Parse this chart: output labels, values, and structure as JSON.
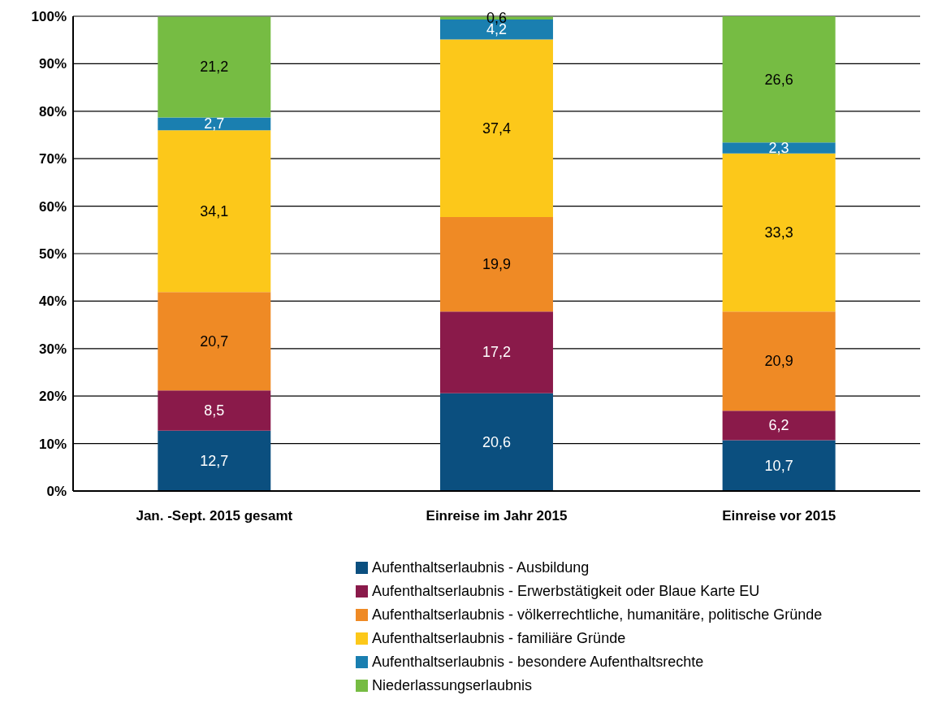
{
  "chart_data": {
    "type": "bar",
    "stacked": true,
    "categories": [
      "Jan. -Sept. 2015 gesamt",
      "Einreise im Jahr 2015",
      "Einreise vor 2015"
    ],
    "series": [
      {
        "name": "Aufenthaltserlaubnis - Ausbildung",
        "color": "#0b4f7f",
        "values": [
          12.7,
          20.6,
          10.7
        ],
        "value_labels": [
          "12,7",
          "20,6",
          "10,7"
        ]
      },
      {
        "name": "Aufenthaltserlaubnis - Erwerbstätigkeit oder Blaue Karte EU",
        "color": "#8a1a4a",
        "values": [
          8.5,
          17.2,
          6.2
        ],
        "value_labels": [
          "8,5",
          "17,2",
          "6,2"
        ]
      },
      {
        "name": "Aufenthaltserlaubnis - völkerrechtliche, humanitäre, politische Gründe",
        "color": "#ef8a25",
        "values": [
          20.7,
          19.9,
          20.9
        ],
        "value_labels": [
          "20,7",
          "19,9",
          "20,9"
        ]
      },
      {
        "name": "Aufenthaltserlaubnis - familiäre Gründe",
        "color": "#fcc81a",
        "values": [
          34.1,
          37.4,
          33.3
        ],
        "value_labels": [
          "34,1",
          "37,4",
          "33,3"
        ]
      },
      {
        "name": "Aufenthaltserlaubnis - besondere Aufenthaltsrechte",
        "color": "#1a7fb0",
        "values": [
          2.7,
          4.2,
          2.3
        ],
        "value_labels": [
          "2,7",
          "4,2",
          "2,3"
        ]
      },
      {
        "name": "Niederlassungserlaubnis",
        "color": "#76bc43",
        "values": [
          21.2,
          0.6,
          26.6
        ],
        "value_labels": [
          "21,2",
          "0,6",
          "26,6"
        ]
      }
    ],
    "ylim": [
      0,
      100
    ],
    "yticks": [
      {
        "value": 0,
        "label": "0%"
      },
      {
        "value": 10,
        "label": "10%"
      },
      {
        "value": 20,
        "label": "20%"
      },
      {
        "value": 30,
        "label": "30%"
      },
      {
        "value": 40,
        "label": "40%"
      },
      {
        "value": 50,
        "label": "50%"
      },
      {
        "value": 60,
        "label": "60%"
      },
      {
        "value": 70,
        "label": "70%"
      },
      {
        "value": 80,
        "label": "80%"
      },
      {
        "value": 90,
        "label": "90%"
      },
      {
        "value": 100,
        "label": "100%"
      }
    ],
    "grid": "y",
    "legend": "bottom"
  }
}
